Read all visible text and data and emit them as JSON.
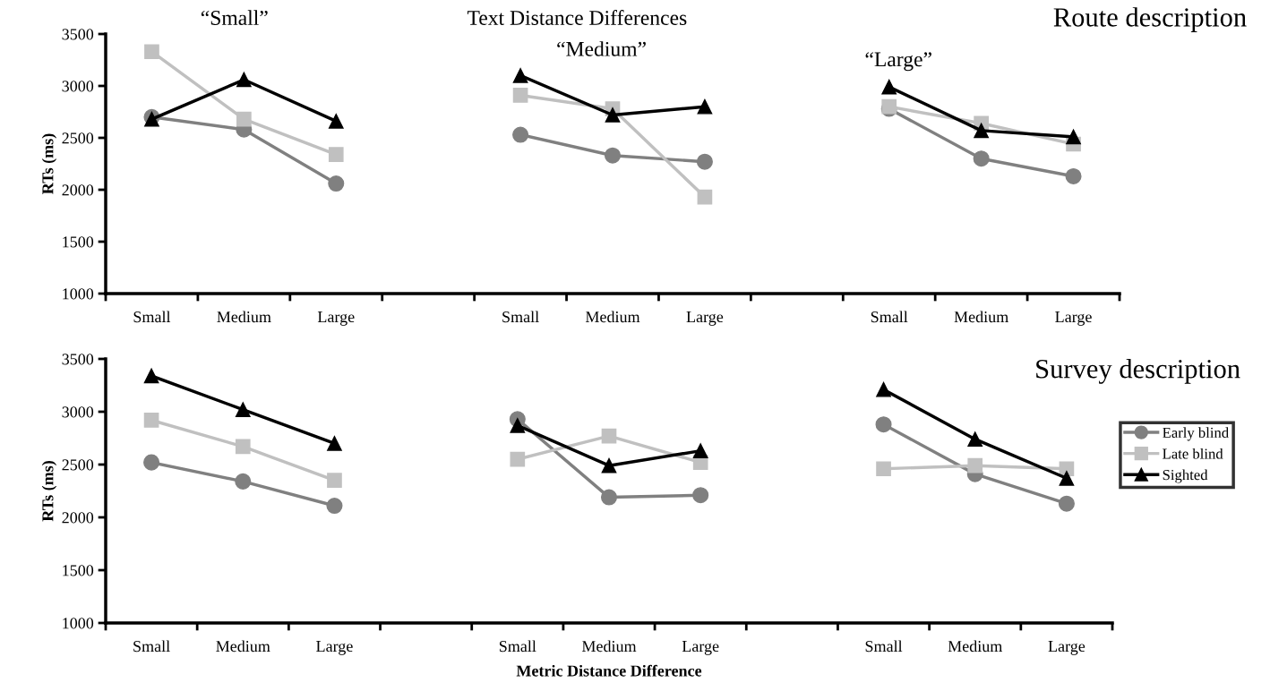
{
  "chart_data": [
    {
      "type": "line",
      "title": "Text Distance Differences",
      "ylabel": "RTs (ms)",
      "annotations": [
        "“Small”",
        "“Medium”",
        "“Large”",
        "Route description"
      ],
      "categories": [
        "Small",
        "Medium",
        "Large",
        null,
        "Small",
        "Medium",
        "Large",
        null,
        "Small",
        "Medium",
        "Large"
      ],
      "ylim": [
        1000,
        3500
      ],
      "yticks": [
        1000,
        1500,
        2000,
        2500,
        3000,
        3500
      ],
      "grid": false,
      "series": [
        {
          "color": "#808080",
          "marker": "circle",
          "values": [
            2700,
            2580,
            2060,
            null,
            2530,
            2330,
            2270,
            null,
            2780,
            2300,
            2130
          ]
        },
        {
          "color": "#c0c0c0",
          "marker": "square",
          "values": [
            3330,
            2680,
            2340,
            null,
            2910,
            2780,
            1930,
            null,
            2800,
            2640,
            2440
          ]
        },
        {
          "color": "#000000",
          "marker": "triangle",
          "values": [
            2680,
            3060,
            2660,
            null,
            3100,
            2720,
            2800,
            null,
            2990,
            2570,
            2510
          ]
        }
      ]
    },
    {
      "type": "line",
      "ylabel": "RTs (ms)",
      "xlabel": "Metric Distance Difference",
      "annotations": [
        "Survey description"
      ],
      "categories": [
        "Small",
        "Medium",
        "Large",
        null,
        "Small",
        "Medium",
        "Large",
        null,
        "Small",
        "Medium",
        "Large"
      ],
      "ylim": [
        1000,
        3500
      ],
      "yticks": [
        1000,
        1500,
        2000,
        2500,
        3000,
        3500
      ],
      "grid": false,
      "legend": "right",
      "series": [
        {
          "name": "Early blind",
          "color": "#808080",
          "marker": "circle",
          "values": [
            2520,
            2340,
            2110,
            null,
            2930,
            2190,
            2210,
            null,
            2880,
            2410,
            2130
          ]
        },
        {
          "name": "Late blind",
          "color": "#c0c0c0",
          "marker": "square",
          "values": [
            2920,
            2670,
            2350,
            null,
            2550,
            2770,
            2520,
            null,
            2460,
            2490,
            2460
          ]
        },
        {
          "name": "Sighted",
          "color": "#000000",
          "marker": "triangle",
          "values": [
            3340,
            3020,
            2700,
            null,
            2870,
            2490,
            2630,
            null,
            3210,
            2740,
            2370
          ]
        }
      ]
    }
  ]
}
